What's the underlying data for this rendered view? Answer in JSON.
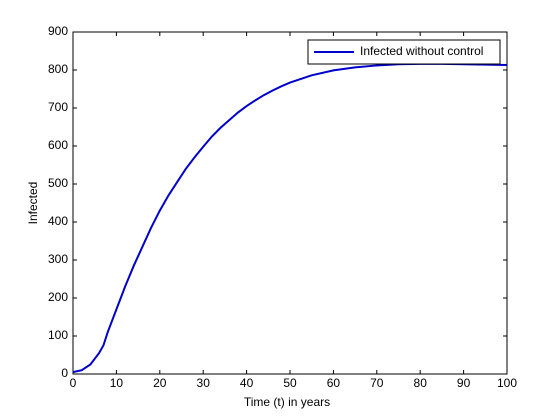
{
  "chart_data": {
    "type": "line",
    "xlabel": "Time (t) in years",
    "ylabel": "Infected",
    "x": [
      0,
      2,
      4,
      6,
      7,
      8,
      10,
      12,
      14,
      16,
      18,
      20,
      22,
      24,
      26,
      28,
      30,
      32,
      34,
      36,
      38,
      40,
      42,
      44,
      46,
      48,
      50,
      55,
      60,
      65,
      70,
      75,
      80,
      85,
      90,
      95,
      100
    ],
    "series": [
      {
        "name": "Infected without control",
        "color": "#0000cc",
        "values": [
          5,
          10,
          25,
          55,
          75,
          110,
          170,
          230,
          285,
          335,
          385,
          430,
          470,
          505,
          540,
          570,
          598,
          625,
          648,
          668,
          688,
          705,
          720,
          734,
          746,
          757,
          767,
          786,
          799,
          807,
          812,
          815,
          816,
          816,
          815,
          814,
          813
        ]
      }
    ],
    "xlim": [
      0,
      100
    ],
    "xticks": [
      0,
      10,
      20,
      30,
      40,
      50,
      60,
      70,
      80,
      90,
      100
    ],
    "ylim": [
      0,
      900
    ],
    "yticks": [
      0,
      100,
      200,
      300,
      400,
      500,
      600,
      700,
      800,
      900
    ],
    "legend": "upper right"
  }
}
